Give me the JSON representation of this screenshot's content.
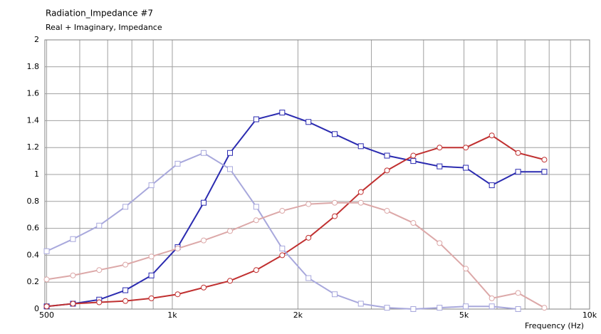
{
  "chart_data": {
    "type": "line",
    "title": "Radiation_Impedance #7",
    "subtitle": "Real + Imaginary, Impedance",
    "xlabel": "Frequency  (Hz)",
    "xscale": "log",
    "x": [
      500,
      578,
      668,
      772,
      891,
      1030,
      1189,
      1375,
      1589,
      1834,
      2120,
      2450,
      2830,
      3270,
      3780,
      4370,
      5050,
      5830,
      6740,
      7790
    ],
    "series": [
      {
        "color": "#2b2bb0",
        "marker": "square",
        "values": [
          0.02,
          0.04,
          0.07,
          0.14,
          0.25,
          0.46,
          0.79,
          1.16,
          1.41,
          1.46,
          1.39,
          1.3,
          1.21,
          1.14,
          1.1,
          1.06,
          1.05,
          0.92,
          1.02,
          1.02
        ]
      },
      {
        "color": "#c03030",
        "marker": "circle",
        "values": [
          0.02,
          0.04,
          0.05,
          0.06,
          0.08,
          0.11,
          0.16,
          0.21,
          0.29,
          0.4,
          0.53,
          0.69,
          0.87,
          1.03,
          1.14,
          1.2,
          1.2,
          1.29,
          1.16,
          1.11
        ]
      },
      {
        "color": "#a8a8dc",
        "marker": "square",
        "values": [
          0.43,
          0.52,
          0.62,
          0.76,
          0.92,
          1.08,
          1.16,
          1.04,
          0.76,
          0.45,
          0.23,
          0.11,
          0.04,
          0.01,
          0,
          0.01,
          0.02,
          0.02,
          0,
          null
        ]
      },
      {
        "color": "#dca8a8",
        "marker": "circle",
        "values": [
          0.22,
          0.25,
          0.29,
          0.33,
          0.39,
          0.45,
          0.51,
          0.58,
          0.66,
          0.73,
          0.78,
          0.79,
          0.79,
          0.73,
          0.64,
          0.49,
          0.3,
          0.08,
          0.12,
          0.01
        ]
      }
    ],
    "xlim": [
      495,
      10000
    ],
    "xticks": [
      {
        "value": 500,
        "label": "500"
      },
      {
        "value": 1000,
        "label": "1k"
      },
      {
        "value": 2000,
        "label": "2k"
      },
      {
        "value": 5000,
        "label": "5k"
      },
      {
        "value": 10000,
        "label": "10k"
      }
    ],
    "xminor_ticks": [
      600,
      700,
      800,
      900,
      3000,
      4000,
      6000,
      7000,
      8000,
      9000
    ],
    "ylim": [
      0,
      2
    ],
    "yticks": [
      0,
      0.2,
      0.4,
      0.6,
      0.8,
      1,
      1.2,
      1.4,
      1.6,
      1.8,
      2
    ],
    "grid": true
  }
}
